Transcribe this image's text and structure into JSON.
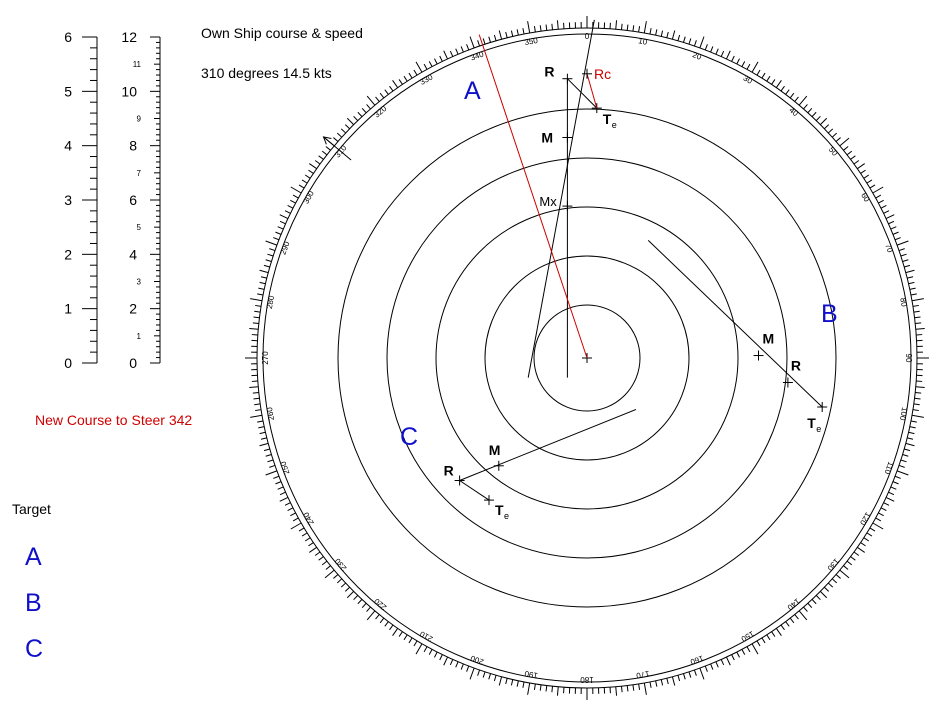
{
  "own_ship": {
    "title": "Own Ship course & speed",
    "value_text": "310 degrees  14.5 kts",
    "course_deg": 310,
    "speed_kts": 14.5
  },
  "new_course": {
    "label": "New Course to Steer  342",
    "course_deg": 342
  },
  "target_list": {
    "heading": "Target",
    "items": [
      "A",
      "B",
      "C"
    ]
  },
  "scale_left": {
    "labels": [
      "0",
      "1",
      "2",
      "3",
      "4",
      "5",
      "6"
    ],
    "min": 0,
    "max": 6,
    "major_step": 1,
    "minor_ticks_per_major": 5
  },
  "scale_right": {
    "major_labels": [
      "0",
      "2",
      "4",
      "6",
      "8",
      "10",
      "12"
    ],
    "minor_labels": [
      "1",
      "3",
      "5",
      "7",
      "9",
      "11"
    ],
    "min": 0,
    "max": 12
  },
  "compass": {
    "labels": [
      "0",
      "10",
      "20",
      "30",
      "40",
      "50",
      "60",
      "70",
      "80",
      "90",
      "100",
      "110",
      "120",
      "130",
      "140",
      "150",
      "160",
      "170",
      "180",
      "190",
      "200",
      "210",
      "220",
      "230",
      "240",
      "250",
      "260",
      "270",
      "280",
      "290",
      "300",
      "310",
      "320",
      "330",
      "340",
      "350"
    ],
    "label_step_deg": 10,
    "tick_step_deg": 1,
    "ring_count": 5,
    "ring_spacing_nm": 1
  },
  "plot": {
    "point_labels": {
      "m": "M",
      "r": "R",
      "te": "T",
      "te_sub": "e",
      "mx": "Mx",
      "rc": "Rc"
    },
    "targets": [
      {
        "id": "A",
        "label": "A",
        "M": [
          -0.4,
          4.5
        ],
        "R": [
          -0.4,
          5.7
        ],
        "Te": [
          0.2,
          5.1
        ],
        "Mx": [
          -0.4,
          3.1
        ],
        "Rc": [
          0.0,
          5.8
        ]
      },
      {
        "id": "B",
        "label": "B",
        "M": [
          3.5,
          0.05
        ],
        "R": [
          4.1,
          -0.5
        ],
        "Te": [
          4.8,
          -1.0
        ]
      },
      {
        "id": "C",
        "label": "C",
        "M": [
          -1.8,
          -2.2
        ],
        "R": [
          -2.6,
          -2.5
        ],
        "Te": [
          -2.0,
          -2.9
        ]
      }
    ],
    "colors": {
      "line": "#000000",
      "relative_course": "#cc0000",
      "target_label": "#1010c8",
      "rc_label": "#cc0000"
    }
  }
}
